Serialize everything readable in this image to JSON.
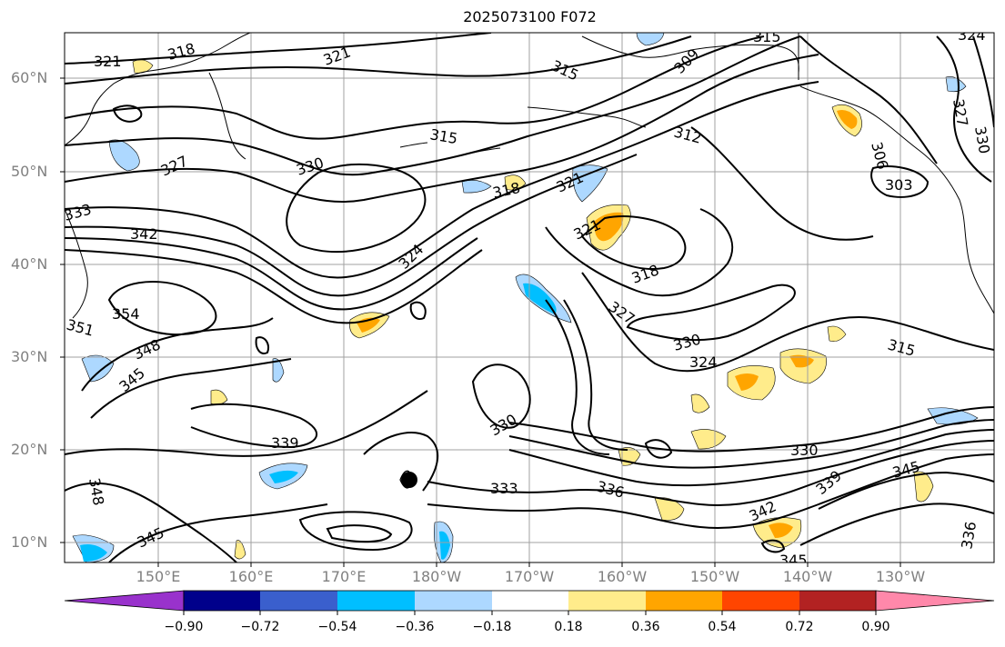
{
  "title": "2025073100 F072",
  "map": {
    "lat_labels": [
      "60°N",
      "50°N",
      "40°N",
      "30°N",
      "20°N",
      "10°N"
    ],
    "lon_labels": [
      "150°E",
      "160°E",
      "170°E",
      "180°W",
      "170°W",
      "160°W",
      "150°W",
      "140°W",
      "130°W"
    ],
    "contour_labels": [
      "321",
      "318",
      "321",
      "315",
      "315",
      "309",
      "324",
      "315",
      "327",
      "330",
      "327",
      "330",
      "318",
      "321",
      "303",
      "306",
      "333",
      "342",
      "324",
      "321",
      "318",
      "354",
      "351",
      "348",
      "345",
      "327",
      "330",
      "324",
      "315",
      "330",
      "339",
      "330",
      "345",
      "339",
      "348",
      "333",
      "336",
      "342",
      "345",
      "345",
      "336",
      "312"
    ],
    "colors": {
      "contour": "#000000",
      "grid": "#a0a0a0",
      "coast": "#000000",
      "marker": "#000000"
    }
  },
  "colorbar": {
    "ticks": [
      "−0.90",
      "−0.72",
      "−0.54",
      "−0.36",
      "−0.18",
      "0.18",
      "0.36",
      "0.54",
      "0.72",
      "0.90"
    ],
    "colors": [
      "#9932cc",
      "#00008b",
      "#3a5fcd",
      "#00bfff",
      "#add8ff",
      "#ffffff",
      "#ffec8b",
      "#ffa500",
      "#ff4500",
      "#b22222",
      "#ff88aa"
    ]
  }
}
